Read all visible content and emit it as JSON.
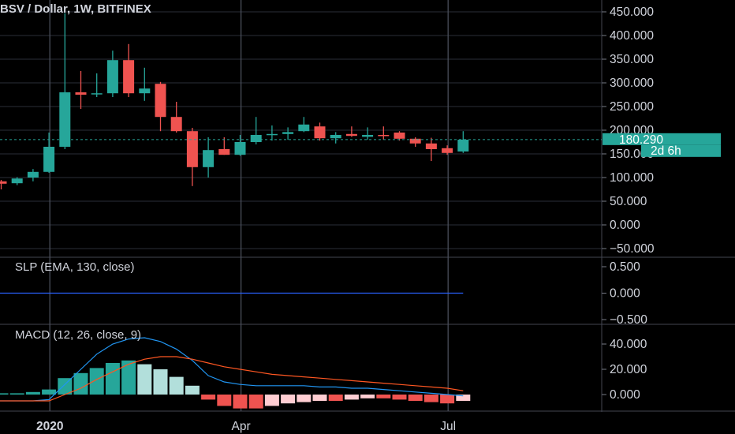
{
  "header": {
    "title": "BSV / Dollar, 1W, BITFINEX"
  },
  "indicators": {
    "slp_label": "SLP (EMA, 130, close)",
    "macd_label": "MACD (12, 26, close, 9)"
  },
  "price_tag": {
    "price": "180.290",
    "countdown": "2d 6h"
  },
  "colors": {
    "background": "#000000",
    "up": "#26a69a",
    "down": "#ef5350",
    "grid": "#2a2e39",
    "slp_line": "#2962ff",
    "macd_line": "#2196f3",
    "signal_line": "#ff5722",
    "hist_up_strong": "#26a69a",
    "hist_up_weak": "#b2dfdb",
    "hist_down_strong": "#ef5350",
    "hist_down_weak": "#ffcdd2",
    "tag": "#26a69a"
  },
  "chart_data": [
    {
      "type": "candlestick",
      "title": "BSV / Dollar, 1W, BITFINEX",
      "y_ticks": [
        "450.000",
        "400.000",
        "350.000",
        "300.000",
        "250.000",
        "200.000",
        "150.000",
        "100.000",
        "50.000",
        "0.000",
        "−50.000"
      ],
      "y_range": [
        -55,
        470
      ],
      "x_labels": [
        {
          "label": "2020",
          "index": 3.5
        },
        {
          "label": "Apr",
          "index": 15.5
        },
        {
          "label": "Jul",
          "index": 28.5
        }
      ],
      "last_price": 180.29,
      "candles": [
        {
          "o": 92,
          "h": 95,
          "l": 75,
          "c": 87
        },
        {
          "o": 88,
          "h": 101,
          "l": 84,
          "c": 98
        },
        {
          "o": 100,
          "h": 118,
          "l": 92,
          "c": 112
        },
        {
          "o": 112,
          "h": 195,
          "l": 110,
          "c": 165
        },
        {
          "o": 165,
          "h": 447,
          "l": 160,
          "c": 280
        },
        {
          "o": 280,
          "h": 325,
          "l": 245,
          "c": 275
        },
        {
          "o": 278,
          "h": 320,
          "l": 270,
          "c": 278
        },
        {
          "o": 278,
          "h": 368,
          "l": 270,
          "c": 348
        },
        {
          "o": 348,
          "h": 382,
          "l": 270,
          "c": 278
        },
        {
          "o": 278,
          "h": 332,
          "l": 262,
          "c": 288
        },
        {
          "o": 298,
          "h": 302,
          "l": 198,
          "c": 228
        },
        {
          "o": 228,
          "h": 260,
          "l": 195,
          "c": 198
        },
        {
          "o": 198,
          "h": 205,
          "l": 82,
          "c": 122
        },
        {
          "o": 122,
          "h": 185,
          "l": 100,
          "c": 158
        },
        {
          "o": 160,
          "h": 185,
          "l": 148,
          "c": 148
        },
        {
          "o": 148,
          "h": 190,
          "l": 146,
          "c": 175
        },
        {
          "o": 175,
          "h": 228,
          "l": 170,
          "c": 190
        },
        {
          "o": 190,
          "h": 210,
          "l": 178,
          "c": 192
        },
        {
          "o": 192,
          "h": 206,
          "l": 180,
          "c": 196
        },
        {
          "o": 198,
          "h": 228,
          "l": 196,
          "c": 212
        },
        {
          "o": 208,
          "h": 216,
          "l": 178,
          "c": 183
        },
        {
          "o": 183,
          "h": 196,
          "l": 172,
          "c": 190
        },
        {
          "o": 192,
          "h": 208,
          "l": 186,
          "c": 188
        },
        {
          "o": 186,
          "h": 206,
          "l": 180,
          "c": 190
        },
        {
          "o": 190,
          "h": 208,
          "l": 180,
          "c": 188
        },
        {
          "o": 195,
          "h": 198,
          "l": 178,
          "c": 182
        },
        {
          "o": 182,
          "h": 185,
          "l": 165,
          "c": 172
        },
        {
          "o": 172,
          "h": 184,
          "l": 135,
          "c": 160
        },
        {
          "o": 162,
          "h": 168,
          "l": 148,
          "c": 152
        },
        {
          "o": 155,
          "h": 198,
          "l": 152,
          "c": 180
        }
      ]
    },
    {
      "type": "line",
      "title": "SLP (EMA, 130, close)",
      "y_ticks": [
        "0.500",
        "0.000",
        "−0.500"
      ],
      "y_range": [
        -0.6,
        0.6
      ],
      "series": [
        {
          "values": [
            0,
            0,
            0,
            0,
            0,
            0,
            0,
            0,
            0,
            0,
            0,
            0,
            0,
            0,
            0,
            0,
            0,
            0,
            0,
            0,
            0,
            0,
            0,
            0,
            0,
            0,
            0,
            0,
            0,
            0
          ]
        }
      ]
    },
    {
      "type": "bar",
      "title": "MACD (12, 26, close, 9)",
      "y_ticks": [
        "40.000",
        "20.000",
        "0.000"
      ],
      "y_range": [
        -10,
        45
      ],
      "histogram": [
        1,
        1,
        2,
        4,
        13,
        17,
        21,
        25,
        27,
        24,
        20,
        14,
        7,
        -4,
        -9,
        -11,
        -11,
        -9,
        -7,
        -6,
        -5,
        -5,
        -4,
        -3,
        -3,
        -4,
        -5,
        -6,
        -7,
        -5
      ],
      "series": [
        {
          "values": [
            -5,
            -5,
            -5,
            -4,
            8,
            20,
            32,
            40,
            44,
            45,
            42,
            36,
            27,
            15,
            10,
            8,
            7,
            7,
            7,
            7,
            6,
            6,
            5,
            5,
            4,
            3,
            2,
            1,
            0,
            -1
          ]
        },
        {
          "values": [
            -5,
            -5,
            -5,
            -5,
            0,
            5,
            12,
            18,
            24,
            28,
            30,
            30,
            28,
            25,
            22,
            20,
            18,
            16,
            15,
            14,
            13,
            12,
            11,
            10,
            9,
            8,
            7,
            6,
            5,
            3
          ]
        }
      ]
    }
  ]
}
